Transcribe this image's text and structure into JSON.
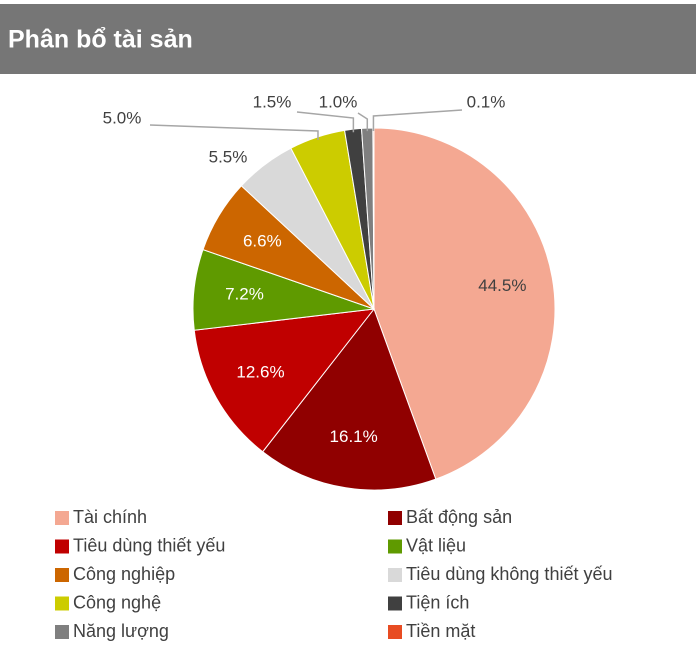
{
  "chart_data": {
    "type": "pie",
    "title": "Phân bổ tài sản",
    "categories": [
      "Tài chính",
      "Bất động sản",
      "Tiêu dùng thiết yếu",
      "Vật liệu",
      "Công nghiệp",
      "Tiêu dùng không thiết yếu",
      "Công nghệ",
      "Tiện ích",
      "Năng lượng",
      "Tiền mặt"
    ],
    "values": [
      44.5,
      16.1,
      12.6,
      7.2,
      6.6,
      5.5,
      5.0,
      1.5,
      1.0,
      0.1
    ],
    "value_labels": [
      "44.5%",
      "16.1%",
      "12.6%",
      "7.2%",
      "6.6%",
      "5.5%",
      "5.0%",
      "1.5%",
      "1.0%",
      "0.1%"
    ],
    "colors": [
      "#f4a892",
      "#900000",
      "#c00000",
      "#5f9a00",
      "#cc6600",
      "#d9d9d9",
      "#cccc00",
      "#404040",
      "#7f7f7f",
      "#e84c22"
    ],
    "legend": "bottom"
  }
}
